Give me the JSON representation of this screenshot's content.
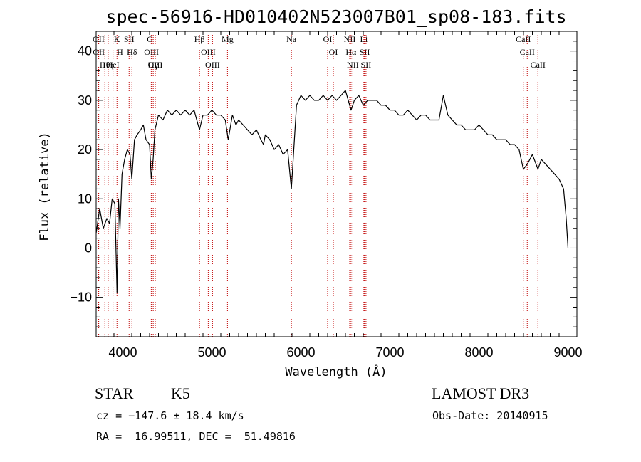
{
  "chart_data": {
    "type": "line",
    "title": "spec-56916-HD010402N523007B01_sp08-183.fits",
    "xlabel": "Wavelength (Å)",
    "ylabel": "Flux (relative)",
    "xlim": [
      3700,
      9100
    ],
    "ylim": [
      -18,
      44
    ],
    "x_ticks": [
      4000,
      5000,
      6000,
      7000,
      8000,
      9000
    ],
    "y_ticks": [
      -10,
      0,
      10,
      20,
      30,
      40
    ],
    "grid": false,
    "series": [
      {
        "name": "flux",
        "color": "#000000",
        "points": [
          [
            3700,
            3
          ],
          [
            3740,
            8
          ],
          [
            3780,
            4
          ],
          [
            3820,
            6
          ],
          [
            3850,
            5
          ],
          [
            3880,
            10
          ],
          [
            3910,
            9
          ],
          [
            3934,
            -9
          ],
          [
            3950,
            10
          ],
          [
            3968,
            4
          ],
          [
            3990,
            15
          ],
          [
            4020,
            18
          ],
          [
            4050,
            20
          ],
          [
            4080,
            19
          ],
          [
            4101,
            14
          ],
          [
            4130,
            22
          ],
          [
            4160,
            23
          ],
          [
            4200,
            24
          ],
          [
            4230,
            25
          ],
          [
            4260,
            22
          ],
          [
            4300,
            21
          ],
          [
            4320,
            14
          ],
          [
            4340,
            18
          ],
          [
            4360,
            24
          ],
          [
            4400,
            27
          ],
          [
            4450,
            26
          ],
          [
            4500,
            28
          ],
          [
            4550,
            27
          ],
          [
            4600,
            28
          ],
          [
            4650,
            27
          ],
          [
            4700,
            28
          ],
          [
            4750,
            27
          ],
          [
            4800,
            28
          ],
          [
            4861,
            24
          ],
          [
            4900,
            27
          ],
          [
            4950,
            27
          ],
          [
            5000,
            28
          ],
          [
            5050,
            27
          ],
          [
            5100,
            27
          ],
          [
            5150,
            26
          ],
          [
            5183,
            22
          ],
          [
            5230,
            27
          ],
          [
            5270,
            25
          ],
          [
            5300,
            26
          ],
          [
            5350,
            25
          ],
          [
            5400,
            24
          ],
          [
            5450,
            23
          ],
          [
            5500,
            24
          ],
          [
            5550,
            22
          ],
          [
            5580,
            21
          ],
          [
            5600,
            23
          ],
          [
            5650,
            22
          ],
          [
            5700,
            20
          ],
          [
            5750,
            21
          ],
          [
            5800,
            19
          ],
          [
            5850,
            20
          ],
          [
            5893,
            12
          ],
          [
            5950,
            29
          ],
          [
            6000,
            31
          ],
          [
            6050,
            30
          ],
          [
            6100,
            31
          ],
          [
            6150,
            30
          ],
          [
            6200,
            30
          ],
          [
            6250,
            31
          ],
          [
            6300,
            30
          ],
          [
            6350,
            31
          ],
          [
            6400,
            30
          ],
          [
            6450,
            31
          ],
          [
            6500,
            32
          ],
          [
            6563,
            28
          ],
          [
            6600,
            30
          ],
          [
            6650,
            31
          ],
          [
            6700,
            29
          ],
          [
            6750,
            30
          ],
          [
            6800,
            30
          ],
          [
            6850,
            30
          ],
          [
            6900,
            29
          ],
          [
            6950,
            29
          ],
          [
            7000,
            28
          ],
          [
            7050,
            28
          ],
          [
            7100,
            27
          ],
          [
            7150,
            27
          ],
          [
            7200,
            28
          ],
          [
            7250,
            27
          ],
          [
            7300,
            26
          ],
          [
            7350,
            27
          ],
          [
            7400,
            27
          ],
          [
            7450,
            26
          ],
          [
            7500,
            26
          ],
          [
            7550,
            26
          ],
          [
            7600,
            31
          ],
          [
            7650,
            27
          ],
          [
            7700,
            26
          ],
          [
            7750,
            25
          ],
          [
            7800,
            25
          ],
          [
            7850,
            24
          ],
          [
            7900,
            24
          ],
          [
            7950,
            24
          ],
          [
            8000,
            25
          ],
          [
            8050,
            24
          ],
          [
            8100,
            23
          ],
          [
            8150,
            23
          ],
          [
            8200,
            22
          ],
          [
            8250,
            22
          ],
          [
            8300,
            22
          ],
          [
            8350,
            21
          ],
          [
            8400,
            21
          ],
          [
            8450,
            20
          ],
          [
            8498,
            16
          ],
          [
            8542,
            17
          ],
          [
            8600,
            19
          ],
          [
            8662,
            16
          ],
          [
            8700,
            18
          ],
          [
            8750,
            17
          ],
          [
            8800,
            16
          ],
          [
            8850,
            15
          ],
          [
            8900,
            14
          ],
          [
            8950,
            12
          ],
          [
            8980,
            6
          ],
          [
            9000,
            0
          ]
        ]
      }
    ],
    "spectral_lines": [
      {
        "label": "Hθ",
        "wavelength": 3798
      },
      {
        "label": "OII",
        "wavelength": 3727
      },
      {
        "label": "OII",
        "wavelength": 3729
      },
      {
        "label": "Hη",
        "wavelength": 3835
      },
      {
        "label": "HeI",
        "wavelength": 3889
      },
      {
        "label": "K",
        "wavelength": 3934
      },
      {
        "label": "H",
        "wavelength": 3968
      },
      {
        "label": "SII",
        "wavelength": 4070
      },
      {
        "label": "Hδ",
        "wavelength": 4102
      },
      {
        "label": "OIII",
        "wavelength": 4321
      },
      {
        "label": "Hγ",
        "wavelength": 4341
      },
      {
        "label": "G",
        "wavelength": 4305
      },
      {
        "label": "OIII",
        "wavelength": 4364
      },
      {
        "label": "Hβ",
        "wavelength": 4861
      },
      {
        "label": "OIII",
        "wavelength": 4959
      },
      {
        "label": "OIII",
        "wavelength": 5007
      },
      {
        "label": "Mg",
        "wavelength": 5175
      },
      {
        "label": "Na",
        "wavelength": 5893
      },
      {
        "label": "OI",
        "wavelength": 6300
      },
      {
        "label": "OI",
        "wavelength": 6364
      },
      {
        "label": "NII",
        "wavelength": 6548
      },
      {
        "label": "Hα",
        "wavelength": 6563
      },
      {
        "label": "NII",
        "wavelength": 6583
      },
      {
        "label": "SII",
        "wavelength": 6716
      },
      {
        "label": "Li",
        "wavelength": 6707
      },
      {
        "label": "SII",
        "wavelength": 6731
      },
      {
        "label": "CaII",
        "wavelength": 8498
      },
      {
        "label": "CaII",
        "wavelength": 8542
      },
      {
        "label": "CaII",
        "wavelength": 8662
      }
    ]
  },
  "info": {
    "object_class": "STAR",
    "subclass": "K5",
    "survey": "LAMOST DR3",
    "redshift": "cz = −147.6 ± 18.4 km/s",
    "obs_date": "Obs-Date: 20140915",
    "coords": "RA =  16.99511, DEC =  51.49816"
  }
}
